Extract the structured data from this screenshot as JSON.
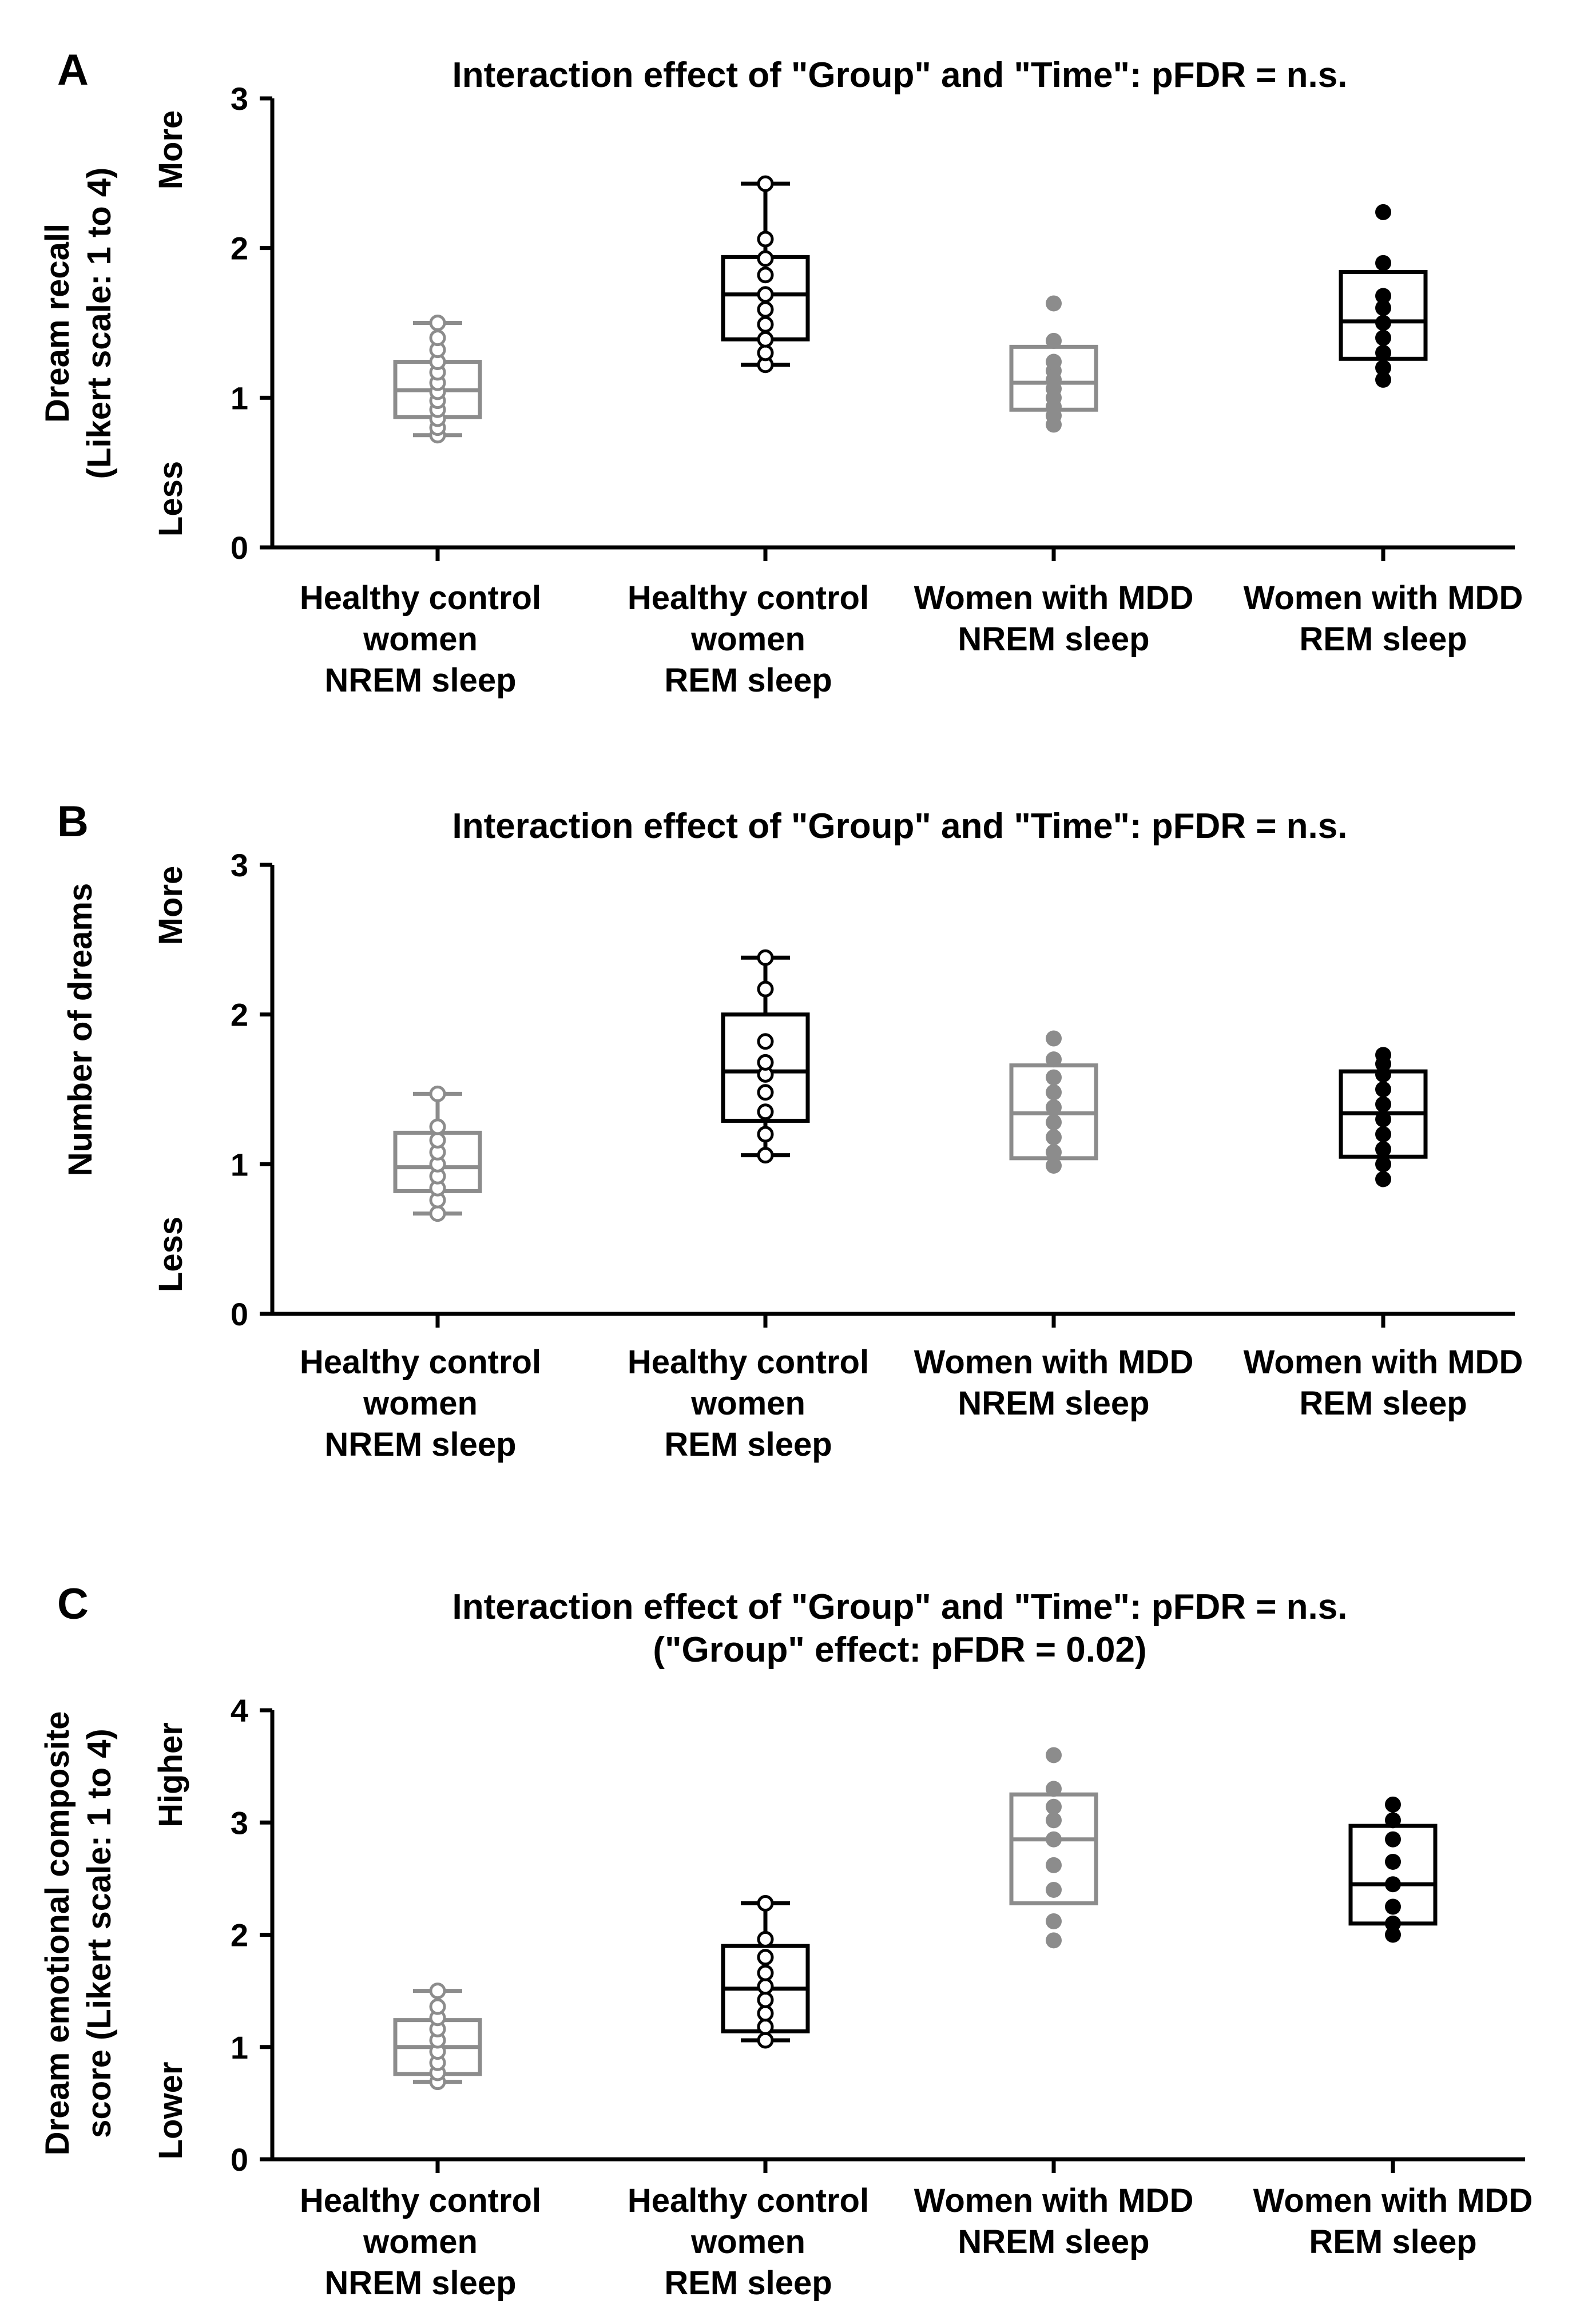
{
  "figure": {
    "background": "#ffffff"
  },
  "colors": {
    "hc": "#8c8c8c",
    "mdd_nrem": "#8c8c8c",
    "hc_rem": "#000000",
    "mdd_rem": "#000000"
  },
  "chart_data": [
    {
      "type": "box",
      "panel_label": "A",
      "title": [
        "Interaction effect of \"Group\" and \"Time\": pFDR = n.s."
      ],
      "ylabel": [
        "Dream recall",
        "(Likert scale: 1 to 4)"
      ],
      "ylim": [
        0,
        3
      ],
      "yticks": [
        "0",
        "1",
        "2",
        "3"
      ],
      "side_labels": {
        "top": "More",
        "bottom": "Less"
      },
      "categories": [
        [
          "Healthy control",
          "women",
          "NREM sleep"
        ],
        [
          "Healthy control",
          "women",
          "REM sleep"
        ],
        [
          "Women with MDD",
          "NREM sleep"
        ],
        [
          "Women with MDD",
          "REM sleep"
        ]
      ],
      "series": [
        {
          "name": "Healthy control women NREM sleep",
          "color": "#8c8c8c",
          "marker": "open",
          "whisker_low": 0.75,
          "q1": 0.87,
          "median": 1.05,
          "q3": 1.24,
          "whisker_high": 1.5,
          "whiskers": true,
          "points": [
            0.75,
            0.8,
            0.86,
            0.92,
            0.98,
            1.04,
            1.1,
            1.17,
            1.24,
            1.32,
            1.4,
            1.5
          ]
        },
        {
          "name": "Healthy control women REM sleep",
          "color": "#000000",
          "marker": "open",
          "whisker_low": 1.22,
          "q1": 1.39,
          "median": 1.69,
          "q3": 1.94,
          "whisker_high": 2.43,
          "whiskers": true,
          "points": [
            1.22,
            1.3,
            1.39,
            1.49,
            1.59,
            1.69,
            1.82,
            1.93,
            2.06,
            2.43
          ]
        },
        {
          "name": "Women with MDD NREM sleep",
          "color": "#8c8c8c",
          "marker": "filled",
          "whisker_low": null,
          "q1": 0.92,
          "median": 1.1,
          "q3": 1.34,
          "whisker_high": null,
          "whiskers": false,
          "points": [
            0.82,
            0.88,
            0.94,
            1.0,
            1.06,
            1.12,
            1.18,
            1.24,
            1.38,
            1.63
          ]
        },
        {
          "name": "Women with MDD REM sleep",
          "color": "#000000",
          "marker": "filled",
          "whisker_low": null,
          "q1": 1.26,
          "median": 1.51,
          "q3": 1.84,
          "whisker_high": null,
          "whiskers": false,
          "points": [
            1.12,
            1.2,
            1.3,
            1.4,
            1.5,
            1.6,
            1.68,
            1.9,
            2.24
          ]
        }
      ]
    },
    {
      "type": "box",
      "panel_label": "B",
      "title": [
        "Interaction effect of \"Group\" and \"Time\": pFDR = n.s."
      ],
      "ylabel": [
        "Number of dreams"
      ],
      "ylim": [
        0,
        3
      ],
      "yticks": [
        "0",
        "1",
        "2",
        "3"
      ],
      "side_labels": {
        "top": "More",
        "bottom": "Less"
      },
      "categories": [
        [
          "Healthy control",
          "women",
          "NREM sleep"
        ],
        [
          "Healthy control",
          "women",
          "REM sleep"
        ],
        [
          "Women with MDD",
          "NREM sleep"
        ],
        [
          "Women with MDD",
          "REM sleep"
        ]
      ],
      "series": [
        {
          "name": "Healthy control women NREM sleep",
          "color": "#8c8c8c",
          "marker": "open",
          "whisker_low": 0.67,
          "q1": 0.82,
          "median": 0.98,
          "q3": 1.21,
          "whisker_high": 1.47,
          "whiskers": true,
          "points": [
            0.67,
            0.76,
            0.84,
            0.92,
            1.0,
            1.08,
            1.16,
            1.25,
            1.47
          ]
        },
        {
          "name": "Healthy control women REM sleep",
          "color": "#000000",
          "marker": "open",
          "whisker_low": 1.06,
          "q1": 1.29,
          "median": 1.62,
          "q3": 2.0,
          "whisker_high": 2.38,
          "whiskers": true,
          "points": [
            1.06,
            1.2,
            1.35,
            1.48,
            1.6,
            1.68,
            1.82,
            2.17,
            2.38
          ]
        },
        {
          "name": "Women with MDD NREM sleep",
          "color": "#8c8c8c",
          "marker": "filled",
          "whisker_low": null,
          "q1": 1.04,
          "median": 1.34,
          "q3": 1.66,
          "whisker_high": null,
          "whiskers": false,
          "points": [
            0.99,
            1.08,
            1.18,
            1.28,
            1.38,
            1.48,
            1.58,
            1.7,
            1.84
          ]
        },
        {
          "name": "Women with MDD REM sleep",
          "color": "#000000",
          "marker": "filled",
          "whisker_low": null,
          "q1": 1.05,
          "median": 1.34,
          "q3": 1.62,
          "whisker_high": null,
          "whiskers": false,
          "points": [
            0.9,
            1.0,
            1.1,
            1.2,
            1.3,
            1.4,
            1.5,
            1.6,
            1.67,
            1.73
          ]
        }
      ]
    },
    {
      "type": "box",
      "panel_label": "C",
      "title": [
        "Interaction effect of \"Group\" and \"Time\": pFDR = n.s.",
        "(\"Group\" effect: pFDR = 0.02)"
      ],
      "ylabel": [
        "Dream emotional composite",
        "score (Likert scale: 1 to 4)"
      ],
      "ylim": [
        0,
        4
      ],
      "yticks": [
        "0",
        "1",
        "2",
        "3",
        "4"
      ],
      "side_labels": {
        "top": "Higher",
        "bottom": "Lower"
      },
      "categories": [
        [
          "Healthy control",
          "women",
          "NREM sleep"
        ],
        [
          "Healthy control",
          "women",
          "REM sleep"
        ],
        [
          "Women with MDD",
          "NREM sleep"
        ],
        [
          "Women with MDD",
          "REM sleep"
        ]
      ],
      "series": [
        {
          "name": "Healthy control women NREM sleep",
          "color": "#8c8c8c",
          "marker": "open",
          "whisker_low": 0.69,
          "q1": 0.76,
          "median": 1.0,
          "q3": 1.24,
          "whisker_high": 1.5,
          "whiskers": true,
          "points": [
            0.69,
            0.77,
            0.86,
            0.96,
            1.06,
            1.16,
            1.26,
            1.36,
            1.5
          ]
        },
        {
          "name": "Healthy control women REM sleep",
          "color": "#000000",
          "marker": "open",
          "whisker_low": 1.06,
          "q1": 1.14,
          "median": 1.52,
          "q3": 1.9,
          "whisker_high": 2.28,
          "whiskers": true,
          "points": [
            1.06,
            1.18,
            1.3,
            1.42,
            1.54,
            1.66,
            1.8,
            1.96,
            2.28
          ]
        },
        {
          "name": "Women with MDD NREM sleep",
          "color": "#8c8c8c",
          "marker": "filled",
          "whisker_low": null,
          "q1": 2.28,
          "median": 2.85,
          "q3": 3.25,
          "whisker_high": null,
          "whiskers": false,
          "points": [
            1.95,
            2.12,
            2.4,
            2.62,
            2.85,
            3.02,
            3.14,
            3.3,
            3.6
          ]
        },
        {
          "name": "Women with MDD REM sleep",
          "color": "#000000",
          "marker": "filled",
          "whisker_low": null,
          "q1": 2.1,
          "median": 2.45,
          "q3": 2.97,
          "whisker_high": null,
          "whiskers": false,
          "points": [
            2.0,
            2.1,
            2.25,
            2.45,
            2.65,
            2.85,
            3.02,
            3.16
          ]
        }
      ]
    }
  ]
}
